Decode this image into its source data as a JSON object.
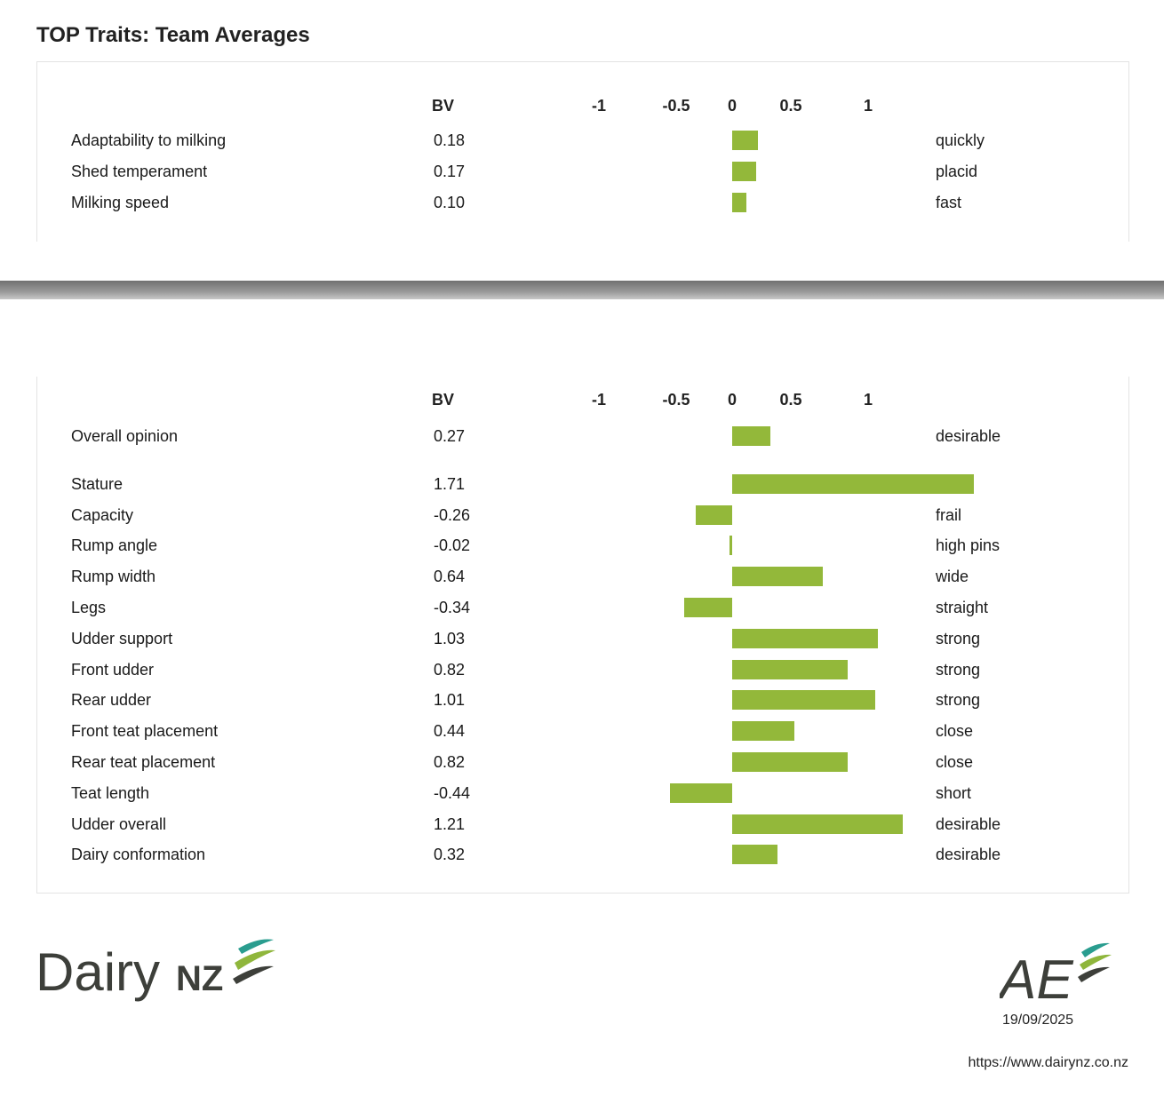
{
  "page": {
    "title": "TOP Traits: Team Averages"
  },
  "headers": {
    "bv": "BV",
    "ticks": [
      "-1",
      "-0.5",
      "0",
      "0.5",
      "1"
    ]
  },
  "chart_data": [
    {
      "type": "bar",
      "orientation": "horizontal",
      "title": "TOP Traits: Team Averages",
      "xlim": [
        -1,
        1
      ],
      "categories": [
        "Adaptability to milking",
        "Shed temperament",
        "Milking speed"
      ],
      "values": [
        0.18,
        0.17,
        0.1
      ],
      "value_labels": [
        "0.18",
        "0.17",
        "0.10"
      ],
      "descriptors": [
        "quickly",
        "placid",
        "fast"
      ]
    },
    {
      "type": "bar",
      "orientation": "horizontal",
      "xlim": [
        -1,
        1
      ],
      "categories": [
        "Overall opinion",
        "Stature",
        "Capacity",
        "Rump angle",
        "Rump width",
        "Legs",
        "Udder support",
        "Front udder",
        "Rear udder",
        "Front teat placement",
        "Rear teat placement",
        "Teat length",
        "Udder overall",
        "Dairy conformation"
      ],
      "values": [
        0.27,
        1.71,
        -0.26,
        -0.02,
        0.64,
        -0.34,
        1.03,
        0.82,
        1.01,
        0.44,
        0.82,
        -0.44,
        1.21,
        0.32
      ],
      "value_labels": [
        "0.27",
        "1.71",
        "-0.26",
        "-0.02",
        "0.64",
        "-0.34",
        "1.03",
        "0.82",
        "1.01",
        "0.44",
        "0.82",
        "-0.44",
        "1.21",
        "0.32"
      ],
      "descriptors": [
        "desirable",
        "",
        "frail",
        "high pins",
        "wide",
        "straight",
        "strong",
        "strong",
        "strong",
        "close",
        "close",
        "short",
        "desirable",
        "desirable"
      ]
    }
  ],
  "colors": {
    "bar": "#93b83a",
    "logo_dark": "#3d3f3a",
    "logo_green": "#8fb63c",
    "logo_teal": "#2a9d8f"
  },
  "footer": {
    "dairynz_logo_text": "DairyNZ",
    "ae_logo_text": "AE",
    "date": "19/09/2025",
    "url": "https://www.dairynz.co.nz"
  }
}
